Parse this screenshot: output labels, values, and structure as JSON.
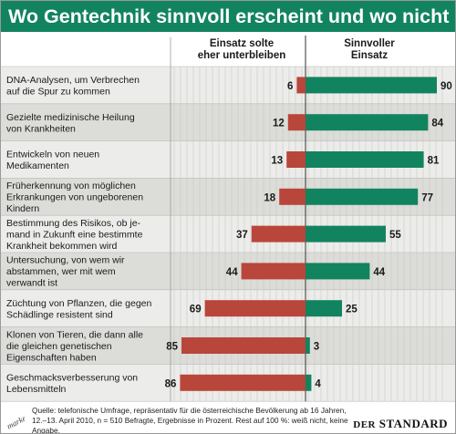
{
  "title": "Wo Gentechnik sinnvoll erscheint und wo nicht",
  "colors": {
    "green": "#12835f",
    "red": "#b9463a",
    "stripe_a": "#ececea",
    "stripe_b": "#dcdcd9"
  },
  "chart_data": {
    "type": "bar",
    "orientation": "horizontal-diverging",
    "title": "Wo Gentechnik sinnvoll erscheint und wo nicht",
    "categories": [
      [
        "DNA-Analysen, um Verbrechen",
        "auf die Spur zu kommen"
      ],
      [
        "Gezielte medizinische Heilung",
        "von Krankheiten"
      ],
      [
        "Entwickeln von neuen",
        "Medikamenten"
      ],
      [
        "Früherkennung von möglichen",
        "Erkrankungen von ungeborenen",
        "Kindern"
      ],
      [
        "Bestimmung des Risikos, ob je-",
        "mand in Zukunft eine bestimmte",
        "Krankheit bekommen wird"
      ],
      [
        "Untersuchung, von wem wir",
        "abstammen, wer mit wem",
        "verwandt ist"
      ],
      [
        "Züchtung von Pflanzen, die gegen",
        "Schädlinge resistent sind"
      ],
      [
        "Klonen von Tieren, die dann alle",
        "die gleichen genetischen",
        "Eigenschaften haben"
      ],
      [
        "Geschmacksverbesserung von",
        "Lebensmitteln"
      ]
    ],
    "series": [
      {
        "name": "Einsatz solte eher unterbleiben",
        "color": "#b9463a",
        "values": [
          6,
          12,
          13,
          18,
          37,
          44,
          69,
          85,
          86
        ]
      },
      {
        "name": "Sinnvoller Einsatz",
        "color": "#12835f",
        "values": [
          90,
          84,
          81,
          77,
          55,
          44,
          25,
          3,
          4
        ]
      }
    ],
    "left_header": [
      "Einsatz solte",
      "eher unterbleiben"
    ],
    "right_header": [
      "Sinnvoller",
      "Einsatz"
    ],
    "xlim": [
      0,
      100
    ],
    "grid": true
  },
  "footer": {
    "source": "Quelle: telefonische Umfrage, repräsentativ für die österreichische Bevölkerung  ab 16 Jahren,  12.–13. April 2010, n = 510 Befragte, Ergebnisse in Prozent. Rest auf 100 %: weiß nicht, keine Angabe.",
    "market_logo": "market",
    "brand_prefix": "DER",
    "brand_name": "STANDARD"
  }
}
